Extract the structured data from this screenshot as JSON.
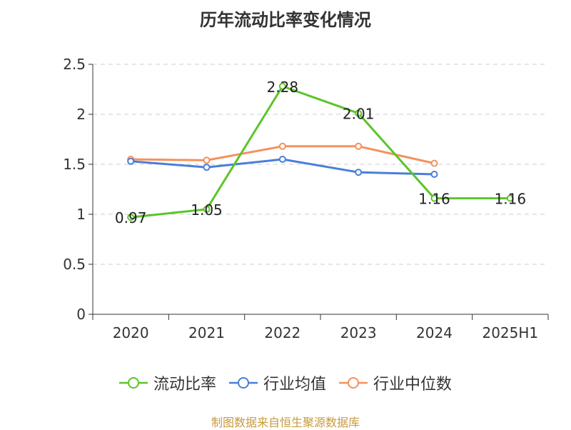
{
  "chart_data": {
    "type": "line",
    "title": "历年流动比率变化情况",
    "categories": [
      "2020",
      "2021",
      "2022",
      "2023",
      "2024",
      "2025H1"
    ],
    "ylim": [
      0,
      2.5
    ],
    "yticks": [
      "0",
      "0.5",
      "1",
      "1.5",
      "2",
      "2.5"
    ],
    "grid": true,
    "legend_position": "bottom",
    "series": [
      {
        "name": "流动比率",
        "color": "#5cc42a",
        "values": [
          0.97,
          1.05,
          2.28,
          2.01,
          1.16,
          1.16
        ],
        "labels": [
          "0.97",
          "1.05",
          "2.28",
          "2.01",
          "1.16",
          "1.16"
        ]
      },
      {
        "name": "行业均值",
        "color": "#4a7fd8",
        "values": [
          1.53,
          1.47,
          1.55,
          1.42,
          1.4,
          null
        ]
      },
      {
        "name": "行业中位数",
        "color": "#f4915e",
        "values": [
          1.55,
          1.54,
          1.68,
          1.68,
          1.51,
          null
        ]
      }
    ]
  },
  "source_text": "制图数据来自恒生聚源数据库"
}
